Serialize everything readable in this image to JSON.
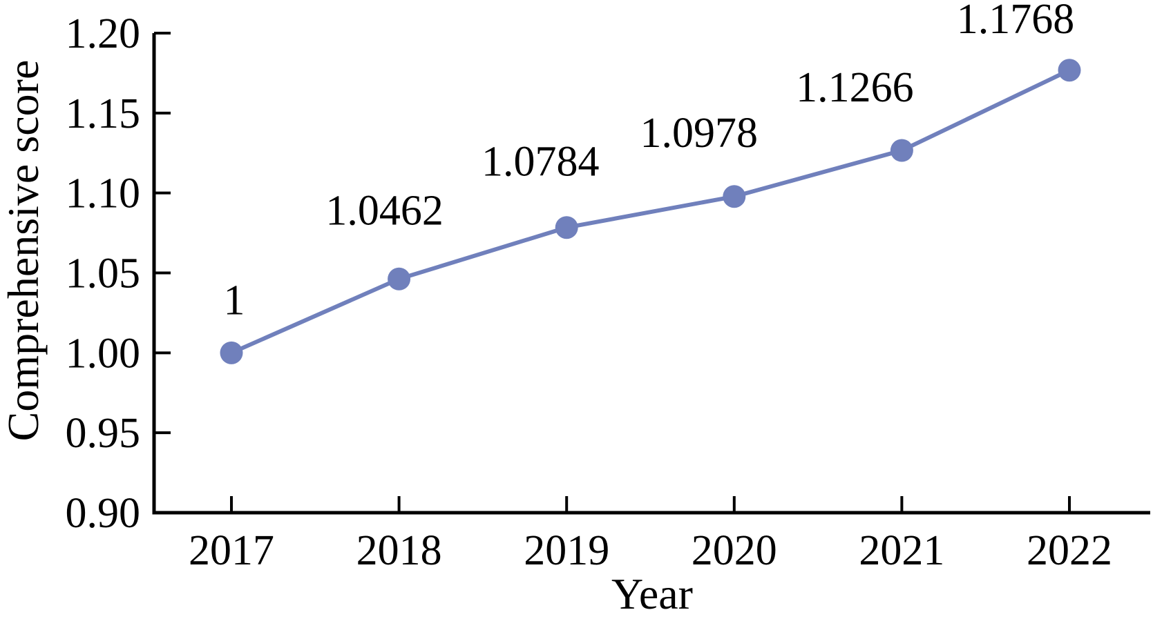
{
  "chart_data": {
    "type": "line",
    "x": [
      2017,
      2018,
      2019,
      2020,
      2021,
      2022
    ],
    "series": [
      {
        "name": "Comprehensive score",
        "values": [
          1,
          1.0462,
          1.0784,
          1.0978,
          1.1266,
          1.1768
        ]
      }
    ],
    "point_labels": [
      "1",
      "1.0462",
      "1.0784",
      "1.0978",
      "1.1266",
      "1.1768"
    ],
    "title": "",
    "xlabel": "Year",
    "ylabel": "Comprehensive score",
    "ylim": [
      0.9,
      1.2
    ],
    "ytick_step": 0.05,
    "yticks": [
      "0.90",
      "0.95",
      "1.00",
      "1.05",
      "1.10",
      "1.15",
      "1.20"
    ],
    "xticks": [
      "2017",
      "2018",
      "2019",
      "2020",
      "2021",
      "2022"
    ],
    "grid": false,
    "legend": "none",
    "line_color": "#7080BC",
    "marker_color": "#7080BC",
    "axis_color": "#000000",
    "background_color": "#ffffff"
  }
}
